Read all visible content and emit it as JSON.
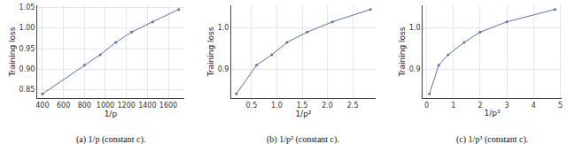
{
  "chart_data": [
    {
      "type": "line",
      "title": "(a) 1/p (constant c).",
      "x_label": "1/p",
      "y_label": "Training loss",
      "x": [
        400,
        800,
        950,
        1100,
        1250,
        1450,
        1700
      ],
      "values": [
        0.84,
        0.91,
        0.935,
        0.965,
        0.99,
        1.015,
        1.045
      ],
      "color": "#5a6fa8",
      "marker": "circle",
      "grid": true,
      "xlim": [
        350,
        1750
      ],
      "ylim": [
        0.83,
        1.055
      ],
      "xticks": [
        400,
        600,
        800,
        1000,
        1200,
        1400,
        1600
      ],
      "yticks": [
        0.85,
        {
          "value": 0.9,
          "label": "0.90"
        },
        0.95,
        {
          "value": 1,
          "label": "1.00"
        },
        1.05
      ]
    },
    {
      "type": "line",
      "title": "(b) 1/p² (constant c).",
      "x_label": "1/p²",
      "y_label": "Training loss",
      "x": [
        0.2,
        0.6,
        0.9,
        1.2,
        1.6,
        2.1,
        2.85
      ],
      "values": [
        0.84,
        0.91,
        0.935,
        0.965,
        0.99,
        1.015,
        1.045
      ],
      "color": "#5a6fa8",
      "marker": "circle",
      "grid": true,
      "xlim": [
        0.1,
        2.95
      ],
      "ylim": [
        0.83,
        1.055
      ],
      "xticks": [
        0.5,
        {
          "value": 1,
          "label": "1.0"
        },
        1.5,
        {
          "value": 2,
          "label": "2.0"
        },
        2.5
      ],
      "yticks": [
        0.9,
        {
          "value": 1,
          "label": "1.0"
        }
      ]
    },
    {
      "type": "line",
      "title": "(c) 1/p³ (constant c).",
      "x_label": "1/p³",
      "y_label": "Training loss",
      "x": [
        0.1,
        0.45,
        0.8,
        1.4,
        2.0,
        3.0,
        4.8
      ],
      "values": [
        0.84,
        0.91,
        0.935,
        0.965,
        0.99,
        1.015,
        1.045
      ],
      "color": "#5a6fa8",
      "marker": "circle",
      "grid": true,
      "xlim": [
        -0.15,
        5.05
      ],
      "ylim": [
        0.83,
        1.055
      ],
      "xticks": [
        0,
        1,
        2,
        3,
        4,
        5
      ],
      "yticks": [
        0.9,
        {
          "value": 1,
          "label": "1.0"
        }
      ]
    }
  ]
}
